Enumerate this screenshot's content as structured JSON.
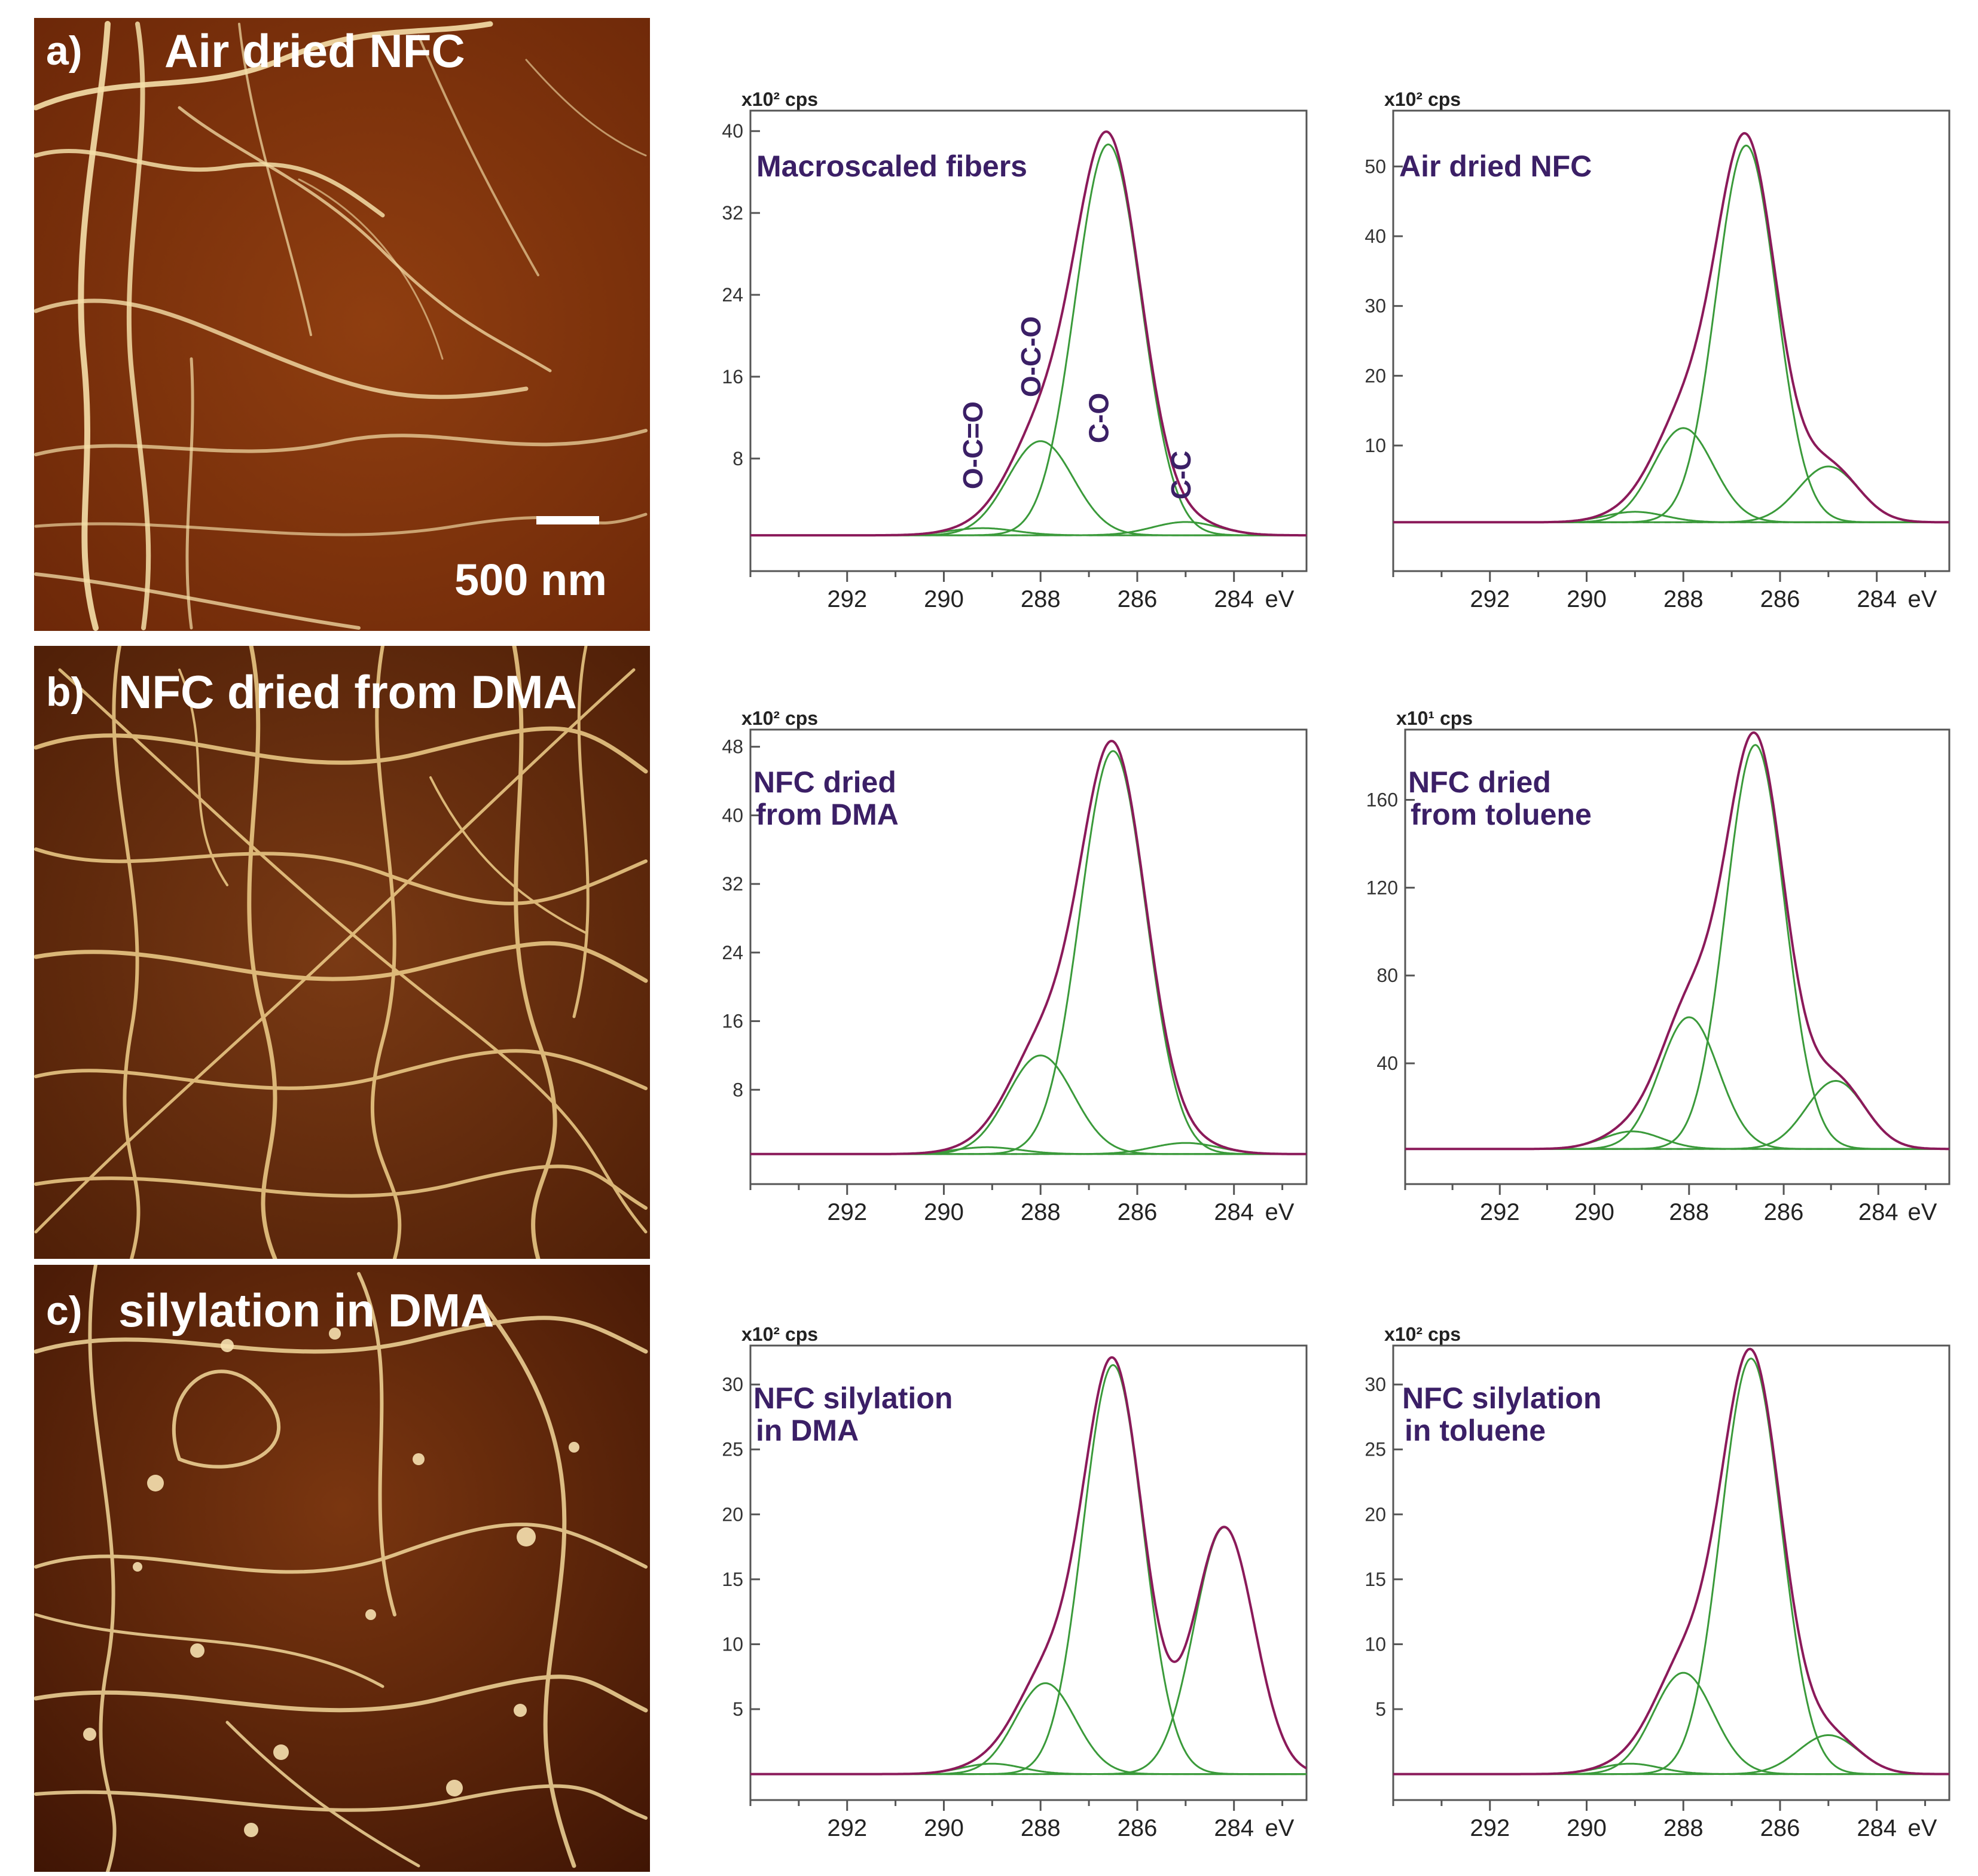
{
  "afm_panels": [
    {
      "label": "a)",
      "title": "Air dried NFC",
      "scalebar_label": "500 nm"
    },
    {
      "label": "b)",
      "title": "NFC dried from DMA",
      "scalebar_label": ""
    },
    {
      "label": "c)",
      "title": "silylation in DMA",
      "scalebar_label": ""
    }
  ],
  "colors": {
    "envelope": "#8b1a5a",
    "components": "#3a9a3a",
    "baseline": "#808080",
    "panel_title": "#3b1f66",
    "afm_dark": "#3d1204",
    "afm_mid": "#8a3a0d",
    "afm_fiber": "#f5dfa8"
  },
  "chart_data": [
    {
      "type": "line",
      "title": "Macroscaled fibers",
      "y_unit": "x10² cps",
      "x_unit": "eV",
      "xlim": [
        294,
        282.5
      ],
      "ylim": [
        -3,
        42
      ],
      "x_ticks": [
        "292",
        "290",
        "288",
        "286",
        "284"
      ],
      "y_ticks": [
        "8",
        "16",
        "24",
        "32",
        "40"
      ],
      "baseline": 0.5,
      "components": [
        {
          "name": "O-C=O",
          "center": 289.2,
          "height": 0.7
        },
        {
          "name": "O-C-O",
          "center": 288.0,
          "height": 9.2
        },
        {
          "name": "C-O",
          "center": 286.6,
          "height": 38.2
        },
        {
          "name": "C-C",
          "center": 285.0,
          "height": 1.3
        }
      ],
      "component_width": 0.68
    },
    {
      "type": "line",
      "title": "Air dried NFC",
      "y_unit": "x10² cps",
      "x_unit": "eV",
      "xlim": [
        294,
        282.5
      ],
      "ylim": [
        -8,
        58
      ],
      "x_ticks": [
        "292",
        "290",
        "288",
        "286",
        "284"
      ],
      "y_ticks": [
        "10",
        "20",
        "30",
        "40",
        "50"
      ],
      "baseline": -1,
      "components": [
        {
          "name": "O-C=O",
          "center": 289.0,
          "height": 1.5
        },
        {
          "name": "O-C-O",
          "center": 288.0,
          "height": 13.5
        },
        {
          "name": "C-O",
          "center": 286.7,
          "height": 54
        },
        {
          "name": "C-C",
          "center": 285.0,
          "height": 8
        }
      ],
      "component_width": 0.62
    },
    {
      "type": "line",
      "title": "NFC dried\nfrom DMA",
      "y_unit": "x10² cps",
      "x_unit": "eV",
      "xlim": [
        294,
        282.5
      ],
      "ylim": [
        -3,
        50
      ],
      "x_ticks": [
        "292",
        "290",
        "288",
        "286",
        "284"
      ],
      "y_ticks": [
        "8",
        "16",
        "24",
        "32",
        "40",
        "48"
      ],
      "baseline": 0.5,
      "components": [
        {
          "name": "O-C=O",
          "center": 289.1,
          "height": 0.8
        },
        {
          "name": "O-C-O",
          "center": 288.0,
          "height": 11.5
        },
        {
          "name": "C-O",
          "center": 286.5,
          "height": 47
        },
        {
          "name": "C-C",
          "center": 285.0,
          "height": 1.3
        }
      ],
      "component_width": 0.68
    },
    {
      "type": "line",
      "title": "NFC dried\nfrom toluene",
      "y_unit": "x10¹ cps",
      "x_unit": "eV",
      "xlim": [
        294,
        282.5
      ],
      "ylim": [
        -15,
        192
      ],
      "x_ticks": [
        "292",
        "290",
        "288",
        "286",
        "284"
      ],
      "y_ticks": [
        "40",
        "80",
        "120",
        "160"
      ],
      "baseline": 1,
      "components": [
        {
          "name": "O-C=O",
          "center": 289.2,
          "height": 8
        },
        {
          "name": "O-C-O",
          "center": 288.0,
          "height": 60
        },
        {
          "name": "C-O",
          "center": 286.6,
          "height": 184
        },
        {
          "name": "C-C",
          "center": 284.9,
          "height": 31
        }
      ],
      "component_width": 0.62
    },
    {
      "type": "line",
      "title": "NFC silylation\nin DMA",
      "y_unit": "x10² cps",
      "x_unit": "eV",
      "xlim": [
        294,
        282.5
      ],
      "ylim": [
        -2,
        33
      ],
      "x_ticks": [
        "292",
        "290",
        "288",
        "286",
        "284"
      ],
      "y_ticks": [
        "5",
        "10",
        "15",
        "20",
        "25",
        "30"
      ],
      "baseline": 0,
      "components": [
        {
          "name": "O-C=O",
          "center": 289.0,
          "height": 0.8
        },
        {
          "name": "O-C-O",
          "center": 287.9,
          "height": 7
        },
        {
          "name": "C-O",
          "center": 286.5,
          "height": 31.5
        },
        {
          "name": "C-C",
          "center": 284.2,
          "height": 19
        }
      ],
      "component_width": 0.62
    },
    {
      "type": "line",
      "title": "NFC silylation\nin toluene",
      "y_unit": "x10² cps",
      "x_unit": "eV",
      "xlim": [
        294,
        282.5
      ],
      "ylim": [
        -2,
        33
      ],
      "x_ticks": [
        "292",
        "290",
        "288",
        "286",
        "284"
      ],
      "y_ticks": [
        "5",
        "10",
        "15",
        "20",
        "25",
        "30"
      ],
      "baseline": 0,
      "components": [
        {
          "name": "O-C=O",
          "center": 289.1,
          "height": 0.8
        },
        {
          "name": "O-C-O",
          "center": 288.0,
          "height": 7.8
        },
        {
          "name": "C-O",
          "center": 286.6,
          "height": 32
        },
        {
          "name": "C-C",
          "center": 285.0,
          "height": 3
        }
      ],
      "component_width": 0.62
    }
  ]
}
